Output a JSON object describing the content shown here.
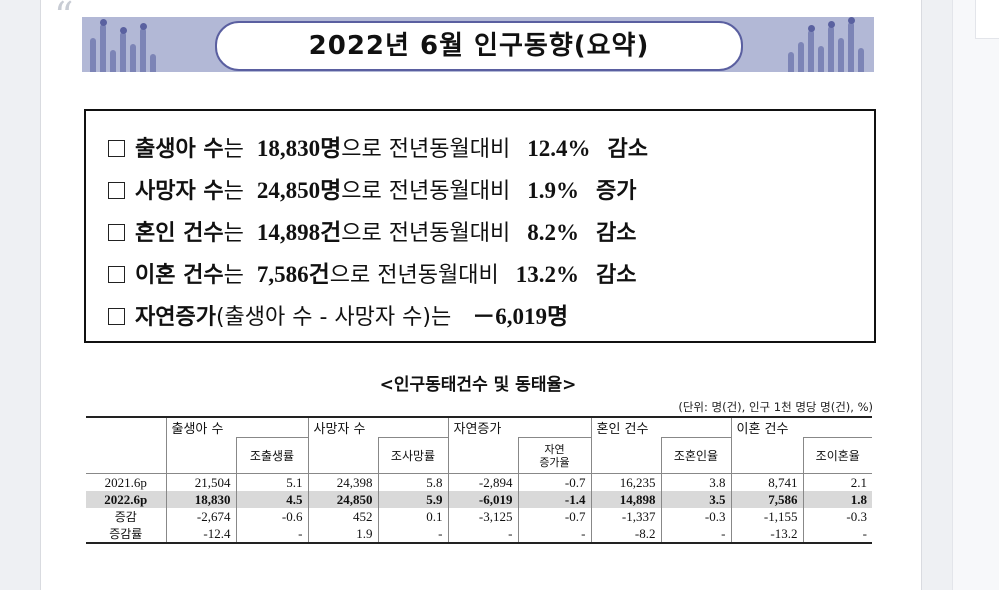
{
  "banner": {
    "title": "2022년 6월 인구동향(요약)"
  },
  "summary": [
    {
      "prefix": "출생아 수",
      "josa": "는",
      "value": "18,830명",
      "tail": "으로 전년동월대비",
      "rate": "12.4%",
      "dir": "감소"
    },
    {
      "prefix": "사망자 수",
      "josa": "는",
      "value": "24,850명",
      "tail": "으로 전년동월대비",
      "rate": "1.9%",
      "dir": "증가"
    },
    {
      "prefix": "혼인 건수",
      "josa": "는",
      "value": "14,898건",
      "tail": "으로 전년동월대비",
      "rate": "8.2%",
      "dir": "감소"
    },
    {
      "prefix": "이혼 건수",
      "josa": "는",
      "value": "7,586건",
      "tail": "으로 전년동월대비",
      "rate": "13.2%",
      "dir": "감소"
    }
  ],
  "natural": {
    "label": "자연증가",
    "formula": "(출생아 수 - 사망자 수)는",
    "value": "－6,019명"
  },
  "table": {
    "title": "<인구동태건수 및 동태율>",
    "unit": "(단위: 명(건), 인구 1천 명당 명(건), %)",
    "groups": [
      "출생아 수",
      "사망자 수",
      "자연증가",
      "혼인 건수",
      "이혼 건수"
    ],
    "subs": [
      "조출생률",
      "조사망률",
      "자연\n증가율",
      "조혼인율",
      "조이혼율"
    ],
    "sub_natural_1": "자연",
    "sub_natural_2": "증가율",
    "rows": [
      {
        "label": "2021.6p",
        "cells": [
          "21,504",
          "5.1",
          "24,398",
          "5.8",
          "-2,894",
          "-0.7",
          "16,235",
          "3.8",
          "8,741",
          "2.1"
        ]
      },
      {
        "label": "2022.6p",
        "cells": [
          "18,830",
          "4.5",
          "24,850",
          "5.9",
          "-6,019",
          "-1.4",
          "14,898",
          "3.5",
          "7,586",
          "1.8"
        ]
      },
      {
        "label": "증감",
        "cells": [
          "-2,674",
          "-0.6",
          "452",
          "0.1",
          "-3,125",
          "-0.7",
          "-1,337",
          "-0.3",
          "-1,155",
          "-0.3"
        ]
      },
      {
        "label": "증감률",
        "cells": [
          "-12.4",
          "-",
          "1.9",
          "-",
          "-",
          "-",
          "-8.2",
          "-",
          "-13.2",
          "-"
        ]
      }
    ]
  }
}
